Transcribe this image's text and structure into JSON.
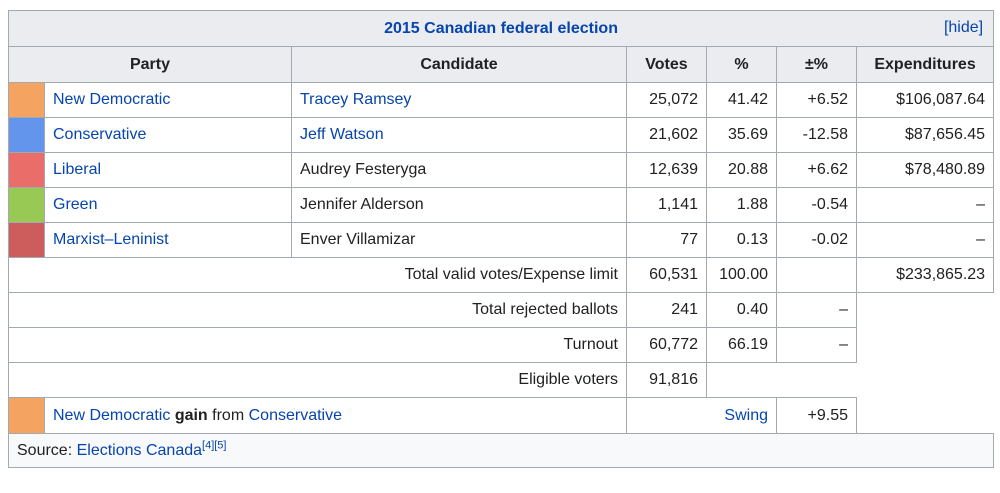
{
  "title": "2015 Canadian federal election",
  "hide_label": "[hide]",
  "headers": {
    "party": "Party",
    "candidate": "Candidate",
    "votes": "Votes",
    "pct": "%",
    "change": "±%",
    "expenditures": "Expenditures"
  },
  "rows": [
    {
      "color": "#f4a460",
      "party": "New Democratic",
      "candidate": "Tracey Ramsey",
      "candidate_link": true,
      "votes": "25,072",
      "pct": "41.42",
      "change": "+6.52",
      "exp": "$106,087.64"
    },
    {
      "color": "#6495ed",
      "party": "Conservative",
      "candidate": "Jeff Watson",
      "candidate_link": true,
      "votes": "21,602",
      "pct": "35.69",
      "change": "-12.58",
      "exp": "$87,656.45"
    },
    {
      "color": "#ea6d6a",
      "party": "Liberal",
      "candidate": "Audrey Festeryga",
      "candidate_link": false,
      "votes": "12,639",
      "pct": "20.88",
      "change": "+6.62",
      "exp": "$78,480.89"
    },
    {
      "color": "#99c955",
      "party": "Green",
      "candidate": "Jennifer Alderson",
      "candidate_link": false,
      "votes": "1,141",
      "pct": "1.88",
      "change": "-0.54",
      "exp": "–"
    },
    {
      "color": "#cd5c5c",
      "party": "Marxist–Leninist",
      "candidate": "Enver Villamizar",
      "candidate_link": false,
      "votes": "77",
      "pct": "0.13",
      "change": "-0.02",
      "exp": "–"
    }
  ],
  "totals": {
    "valid_label": "Total valid votes/Expense limit",
    "valid_votes": "60,531",
    "valid_pct": "100.00",
    "valid_exp": "$233,865.23",
    "rejected_label": "Total rejected ballots",
    "rejected_votes": "241",
    "rejected_pct": "0.40",
    "rejected_change": "–",
    "turnout_label": "Turnout",
    "turnout_votes": "60,772",
    "turnout_pct": "66.19",
    "turnout_change": "–",
    "eligible_label": "Eligible voters",
    "eligible_votes": "91,816"
  },
  "gain": {
    "color": "#f4a460",
    "party": "New Democratic",
    "gain_word": "gain",
    "from_word": "from",
    "from_party": "Conservative",
    "swing_label": "Swing",
    "swing_value": "+9.55"
  },
  "source": {
    "label": "Source:",
    "link": "Elections Canada",
    "refs": "[4][5]"
  }
}
